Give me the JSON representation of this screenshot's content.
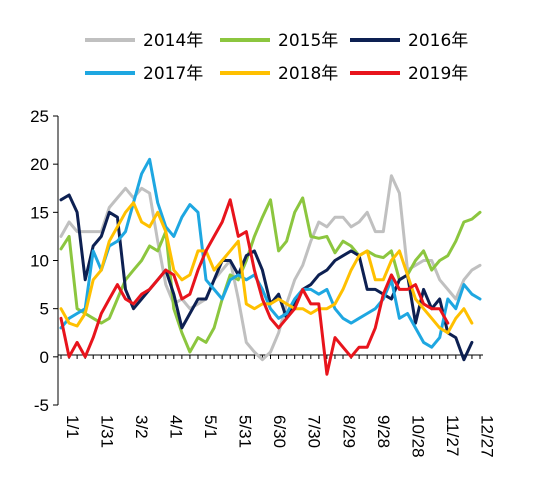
{
  "chart_data": {
    "type": "line",
    "title": "",
    "xlabel": "",
    "ylabel": "",
    "ylim": [
      -5,
      25
    ],
    "yticks": [
      -5,
      0,
      5,
      10,
      15,
      20,
      25
    ],
    "xlim": [
      1,
      53
    ],
    "xtick_labels": [
      "1/1",
      "1/31",
      "3/2",
      "4/1",
      "5/1",
      "5/31",
      "6/30",
      "7/30",
      "8/29",
      "9/28",
      "10/28",
      "11/27",
      "12/27"
    ],
    "xtick_weeks": [
      1,
      5.29,
      9.57,
      13.86,
      18.14,
      22.43,
      26.71,
      31,
      35.29,
      39.57,
      43.86,
      48.14,
      52.43
    ],
    "grid": false,
    "legend_position": "top",
    "series": [
      {
        "name": "2014年",
        "color": "#c0c0c0",
        "x": [
          1,
          2,
          3,
          4,
          5,
          6,
          7,
          8,
          9,
          10,
          11,
          12,
          13,
          14,
          15,
          16,
          17,
          18,
          19,
          20,
          21,
          22,
          23,
          24,
          25,
          26,
          27,
          28,
          29,
          30,
          31,
          32,
          33,
          34,
          35,
          36,
          37,
          38,
          39,
          40,
          41,
          42,
          43,
          44,
          45,
          46,
          47,
          48,
          49,
          50,
          51,
          52,
          53
        ],
        "values": [
          12.5,
          14,
          13,
          13,
          13,
          13,
          15.5,
          16.5,
          17.5,
          16.5,
          17.5,
          17,
          12,
          7.5,
          5.5,
          6,
          5,
          5.5,
          6,
          8,
          9,
          10,
          6,
          1.5,
          0.5,
          -0.3,
          0.5,
          2.5,
          5.5,
          8,
          9.5,
          12,
          14,
          13.5,
          14.5,
          14.5,
          13.5,
          14,
          15,
          13,
          13,
          18.8,
          17,
          9,
          9.5,
          10,
          10,
          8,
          7,
          6,
          8,
          9,
          9.5
        ]
      },
      {
        "name": "2015年",
        "color": "#8cc63f",
        "x": [
          1,
          2,
          3,
          4,
          5,
          6,
          7,
          8,
          9,
          10,
          11,
          12,
          13,
          14,
          15,
          16,
          17,
          18,
          19,
          20,
          21,
          22,
          23,
          24,
          25,
          26,
          27,
          28,
          29,
          30,
          31,
          32,
          33,
          34,
          35,
          36,
          37,
          38,
          39,
          40,
          41,
          42,
          43,
          44,
          45,
          46,
          47,
          48,
          49,
          50,
          51,
          52,
          53
        ],
        "values": [
          11.2,
          12.5,
          5,
          4.5,
          4,
          3.5,
          4,
          6,
          8,
          9,
          10,
          11.5,
          11,
          13,
          5,
          2.5,
          0.5,
          2,
          1.5,
          3,
          6,
          8.5,
          8,
          10,
          12.5,
          14.5,
          16.3,
          11,
          12,
          15,
          16.5,
          12.5,
          12.3,
          12.5,
          10.8,
          12,
          11.5,
          10.5,
          11,
          10.5,
          10.3,
          11,
          8,
          8.5,
          10,
          11,
          9,
          10,
          10.5,
          12,
          14,
          14.3,
          15
        ]
      },
      {
        "name": "2016年",
        "color": "#0d2052",
        "x": [
          1,
          2,
          3,
          4,
          5,
          6,
          7,
          8,
          9,
          10,
          11,
          12,
          13,
          14,
          15,
          16,
          17,
          18,
          19,
          20,
          21,
          22,
          23,
          24,
          25,
          26,
          27,
          28,
          29,
          30,
          31,
          32,
          33,
          34,
          35,
          36,
          37,
          38,
          39,
          40,
          41,
          42,
          43,
          44,
          45,
          46,
          47,
          48,
          49,
          50,
          51,
          52,
          53
        ],
        "values": [
          16.3,
          16.8,
          15,
          8,
          11.5,
          12.5,
          15,
          14.5,
          7,
          5,
          6,
          7,
          8,
          9,
          6.5,
          3,
          4.5,
          6,
          6,
          8,
          10,
          10,
          8.5,
          10.5,
          11,
          9,
          5.5,
          6.5,
          4,
          5.5,
          7,
          7.5,
          8.5,
          9,
          10,
          10.5,
          11,
          10.5,
          7,
          7,
          6.5,
          6,
          8,
          8.5,
          3.5,
          7,
          5,
          6,
          2.5,
          2,
          -0.3,
          1.5,
          null
        ]
      },
      {
        "name": "2017年",
        "color": "#1ea7e1",
        "x": [
          1,
          2,
          3,
          4,
          5,
          6,
          7,
          8,
          9,
          10,
          11,
          12,
          13,
          14,
          15,
          16,
          17,
          18,
          19,
          20,
          21,
          22,
          23,
          24,
          25,
          26,
          27,
          28,
          29,
          30,
          31,
          32,
          33,
          34,
          35,
          36,
          37,
          38,
          39,
          40,
          41,
          42,
          43,
          44,
          45,
          46,
          47,
          48,
          49,
          50,
          51,
          52,
          53
        ],
        "values": [
          3,
          4,
          4.5,
          5,
          11,
          9,
          11.5,
          12,
          13,
          16,
          19,
          20.5,
          16,
          13.5,
          12.5,
          14.5,
          15.8,
          15,
          8,
          7,
          6,
          8,
          8.5,
          8,
          8.5,
          7,
          5,
          4,
          4.5,
          6,
          7,
          7,
          6.5,
          7,
          5,
          4,
          3.5,
          4,
          4.5,
          5,
          6,
          8,
          4,
          4.5,
          3,
          1.5,
          1,
          2,
          6,
          5,
          7.5,
          6.5,
          6
        ]
      },
      {
        "name": "2018年",
        "color": "#ffc000",
        "x": [
          1,
          2,
          3,
          4,
          5,
          6,
          7,
          8,
          9,
          10,
          11,
          12,
          13,
          14,
          15,
          16,
          17,
          18,
          19,
          20,
          21,
          22,
          23,
          24,
          25,
          26,
          27,
          28,
          29,
          30,
          31,
          32,
          33,
          34,
          35,
          36,
          37,
          38,
          39,
          40,
          41,
          42,
          43,
          44,
          45,
          46,
          47,
          48,
          49,
          50,
          51,
          52,
          53
        ],
        "values": [
          5,
          3.5,
          3.2,
          4.5,
          8,
          9,
          12,
          13.5,
          15,
          16,
          14,
          13.5,
          15,
          13,
          9,
          8,
          8.5,
          11,
          11,
          9,
          10,
          11,
          12,
          5.5,
          5,
          5.5,
          5.5,
          6,
          5.5,
          5,
          5,
          4.5,
          5,
          5,
          5.5,
          7,
          9,
          10.5,
          11,
          8,
          8,
          10,
          11,
          8.5,
          6,
          5,
          4,
          3,
          2.5,
          4,
          5,
          3.5,
          null
        ]
      },
      {
        "name": "2019年",
        "color": "#e8141c",
        "x": [
          1,
          2,
          3,
          4,
          5,
          6,
          7,
          8,
          9,
          10,
          11,
          12,
          13,
          14,
          15,
          16,
          17,
          18,
          19,
          20,
          21,
          22,
          23,
          24,
          25,
          26,
          27,
          28,
          29,
          30,
          31,
          32,
          33,
          34,
          35,
          36,
          37,
          38,
          39,
          40,
          41,
          42,
          43,
          44,
          45,
          46,
          47,
          48,
          49,
          50,
          51,
          52,
          53
        ],
        "values": [
          4,
          0,
          1.5,
          0,
          2,
          4.5,
          6,
          7.5,
          6,
          5.5,
          6.5,
          7,
          8,
          9,
          8.5,
          6,
          6.5,
          9,
          11,
          12.5,
          14,
          16.3,
          12.5,
          13,
          9,
          6,
          4,
          3,
          4,
          5,
          7,
          5.5,
          5.5,
          -1.8,
          2,
          1,
          0,
          1,
          1,
          3,
          6.5,
          8.5,
          7,
          7,
          7.5,
          5.5,
          5,
          5,
          3.5,
          null,
          null,
          null,
          null
        ]
      }
    ]
  }
}
